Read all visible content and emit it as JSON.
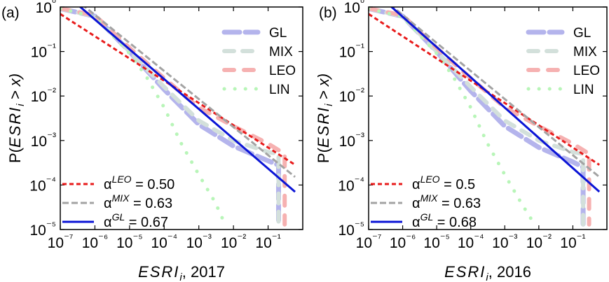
{
  "chart_data": [
    {
      "panel_label": "(a)",
      "type": "line",
      "x_scale": "log",
      "y_scale": "log",
      "xlim": [
        1e-07,
        1
      ],
      "ylim": [
        1e-05,
        1
      ],
      "x_ticks": [
        1e-07,
        1e-06,
        1e-05,
        0.0001,
        0.001,
        0.01,
        0.1
      ],
      "y_ticks": [
        1e-05,
        0.0001,
        0.001,
        0.01,
        0.1,
        1
      ],
      "xlabel_main": "ESRI",
      "xlabel_sub": "i",
      "xlabel_suffix": ", 2017",
      "ylabel_pre": "P(",
      "ylabel_main": "ESRI",
      "ylabel_sub": "i",
      "ylabel_post": " > x)",
      "legend_top": {
        "position": "top-right",
        "entries": [
          {
            "label": "GL",
            "series": "GL"
          },
          {
            "label": "MIX",
            "series": "MIX"
          },
          {
            "label": "LEO",
            "series": "LEO"
          },
          {
            "label": "LIN",
            "series": "LIN"
          }
        ]
      },
      "legend_bottom": {
        "position": "bottom-left",
        "entries": [
          {
            "base": "α",
            "sup": "LEO",
            "eq": " = 0.50",
            "fit": "LEO"
          },
          {
            "base": "α",
            "sup": "MIX",
            "eq": " = 0.63",
            "fit": "MIX"
          },
          {
            "base": "α",
            "sup": "GL",
            "eq": " = 0.67",
            "fit": "GL"
          }
        ]
      },
      "series": [
        {
          "name": "GL",
          "points": [
            [
              1e-07,
              0.92
            ],
            [
              1e-06,
              0.62
            ],
            [
              1e-05,
              0.1
            ],
            [
              0.0001,
              0.014
            ],
            [
              0.001,
              0.0023
            ],
            [
              0.01,
              0.00075
            ],
            [
              0.1,
              0.00035
            ],
            [
              0.2,
              0.00028
            ],
            [
              0.2,
              1.3e-05
            ]
          ]
        },
        {
          "name": "MIX",
          "points": [
            [
              1e-07,
              0.92
            ],
            [
              1e-06,
              0.62
            ],
            [
              1e-05,
              0.1
            ],
            [
              0.0001,
              0.016
            ],
            [
              0.001,
              0.0028
            ],
            [
              0.01,
              0.001
            ],
            [
              0.1,
              0.00055
            ],
            [
              0.2,
              0.0005
            ],
            [
              0.2,
              1.3e-05
            ]
          ]
        },
        {
          "name": "LEO",
          "points": [
            [
              1e-07,
              0.93
            ],
            [
              1e-06,
              0.65
            ],
            [
              1e-05,
              0.12
            ],
            [
              0.0001,
              0.025
            ],
            [
              0.001,
              0.0055
            ],
            [
              0.01,
              0.0021
            ],
            [
              0.1,
              0.00085
            ],
            [
              0.3,
              0.0005
            ],
            [
              0.3,
              1.3e-05
            ]
          ]
        },
        {
          "name": "LIN",
          "points": [
            [
              1e-07,
              0.92
            ],
            [
              1e-06,
              0.6
            ],
            [
              1e-05,
              0.09
            ],
            [
              3e-05,
              0.028
            ],
            [
              0.0001,
              0.0055
            ],
            [
              0.0003,
              0.0009
            ],
            [
              0.001,
              0.00017
            ],
            [
              0.003,
              4e-05
            ],
            [
              0.006,
              1.2e-05
            ]
          ]
        }
      ],
      "fits": [
        {
          "name": "LEO",
          "alpha": 0.5,
          "x_range": [
            1e-07,
            0.6
          ],
          "y_at_1": 0.00022
        },
        {
          "name": "MIX",
          "alpha": 0.63,
          "x_range": [
            1e-07,
            0.6
          ],
          "y_at_1": 0.00011
        },
        {
          "name": "GL",
          "alpha": 0.67,
          "x_range": [
            1e-07,
            0.6
          ],
          "y_at_1": 5e-05
        }
      ]
    },
    {
      "panel_label": "(b)",
      "type": "line",
      "x_scale": "log",
      "y_scale": "log",
      "xlim": [
        1e-07,
        1
      ],
      "ylim": [
        1e-05,
        1
      ],
      "x_ticks": [
        1e-07,
        1e-06,
        1e-05,
        0.0001,
        0.001,
        0.01,
        0.1
      ],
      "y_ticks": [
        1e-05,
        0.0001,
        0.001,
        0.01,
        0.1,
        1
      ],
      "xlabel_main": "ESRI",
      "xlabel_sub": "i",
      "xlabel_suffix": ", 2016",
      "ylabel_pre": "P(",
      "ylabel_main": "ESRI",
      "ylabel_sub": "i",
      "ylabel_post": " > x)",
      "legend_top": {
        "position": "top-right",
        "entries": [
          {
            "label": "GL",
            "series": "GL"
          },
          {
            "label": "MIX",
            "series": "MIX"
          },
          {
            "label": "LEO",
            "series": "LEO"
          },
          {
            "label": "LIN",
            "series": "LIN"
          }
        ]
      },
      "legend_bottom": {
        "position": "bottom-left",
        "entries": [
          {
            "base": "α",
            "sup": "LEO",
            "eq": " = 0.5",
            "fit": "LEO"
          },
          {
            "base": "α",
            "sup": "MIX",
            "eq": " = 0.63",
            "fit": "MIX"
          },
          {
            "base": "α",
            "sup": "GL",
            "eq": " = 0.68",
            "fit": "GL"
          }
        ]
      },
      "series": [
        {
          "name": "GL",
          "points": [
            [
              1e-07,
              0.92
            ],
            [
              1e-06,
              0.62
            ],
            [
              1e-05,
              0.1
            ],
            [
              0.0001,
              0.013
            ],
            [
              0.001,
              0.0021
            ],
            [
              0.01,
              0.0007
            ],
            [
              0.1,
              0.00033
            ],
            [
              0.2,
              0.00025
            ],
            [
              0.2,
              1.3e-05
            ]
          ]
        },
        {
          "name": "MIX",
          "points": [
            [
              1e-07,
              0.92
            ],
            [
              1e-06,
              0.62
            ],
            [
              1e-05,
              0.1
            ],
            [
              0.0001,
              0.016
            ],
            [
              0.001,
              0.0028
            ],
            [
              0.01,
              0.001
            ],
            [
              0.1,
              0.00055
            ],
            [
              0.2,
              0.0005
            ],
            [
              0.2,
              1.3e-05
            ]
          ]
        },
        {
          "name": "LEO",
          "points": [
            [
              1e-07,
              0.93
            ],
            [
              1e-06,
              0.65
            ],
            [
              1e-05,
              0.12
            ],
            [
              0.0001,
              0.025
            ],
            [
              0.001,
              0.0055
            ],
            [
              0.01,
              0.0021
            ],
            [
              0.1,
              0.00085
            ],
            [
              0.3,
              0.0005
            ],
            [
              0.3,
              1.3e-05
            ]
          ]
        },
        {
          "name": "LIN",
          "points": [
            [
              1e-07,
              0.92
            ],
            [
              1e-06,
              0.6
            ],
            [
              1e-05,
              0.09
            ],
            [
              3e-05,
              0.028
            ],
            [
              0.0001,
              0.0055
            ],
            [
              0.0003,
              0.0009
            ],
            [
              0.001,
              0.00017
            ],
            [
              0.003,
              4e-05
            ],
            [
              0.008,
              1.2e-05
            ]
          ]
        }
      ],
      "fits": [
        {
          "name": "LEO",
          "alpha": 0.5,
          "x_range": [
            1e-07,
            0.6
          ],
          "y_at_1": 0.00022
        },
        {
          "name": "MIX",
          "alpha": 0.63,
          "x_range": [
            1e-07,
            0.6
          ],
          "y_at_1": 0.00011
        },
        {
          "name": "GL",
          "alpha": 0.68,
          "x_range": [
            1e-07,
            0.6
          ],
          "y_at_1": 5e-05
        }
      ]
    }
  ],
  "styles": {
    "GL": {
      "color": "#b4b4ec",
      "fit_color": "#0b14d6"
    },
    "MIX": {
      "color": "#d3e0db",
      "fit_color": "#a3a3a3"
    },
    "LEO": {
      "color": "#f6b1b1",
      "fit_color": "#e81b1b"
    },
    "LIN": {
      "color": "#b8f5b8",
      "fit_color": "#b8f5b8"
    }
  }
}
